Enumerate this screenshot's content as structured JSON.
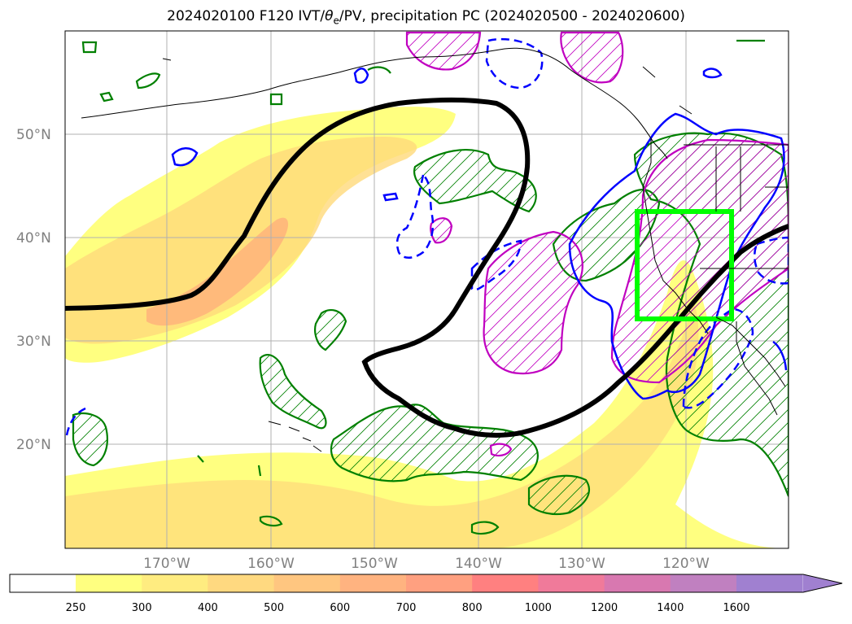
{
  "title": {
    "prefix": "2024020100 F120 IVT/",
    "theta": "θ",
    "theta_sub": "e",
    "suffix": "/PV, precipitation PC (2024020500 - 2024020600)"
  },
  "axes": {
    "lat_labels": [
      "50°N",
      "40°N",
      "30°N",
      "20°N"
    ],
    "lon_labels": [
      "170°W",
      "160°W",
      "150°W",
      "140°W",
      "130°W",
      "120°W"
    ]
  },
  "colorbar": {
    "ticks": [
      "250",
      "300",
      "400",
      "500",
      "600",
      "700",
      "800",
      "1000",
      "1200",
      "1400",
      "1600"
    ],
    "colors": [
      "#ffff80",
      "#ffec80",
      "#ffd980",
      "#ffc680",
      "#ffb380",
      "#ffa080",
      "#ff8080",
      "#f07a9a",
      "#d878b0",
      "#c080c0",
      "#a080d0"
    ],
    "extend": "max"
  },
  "colors": {
    "ivt_fill_light": "#ffff80",
    "ivt_fill_mid": "#ffd97a",
    "ivt_fill_high": "#ffb07a",
    "pv_contour": "#000000",
    "green_contour": "#008000",
    "magenta_contour": "#c000c0",
    "blue_contour": "#0000ff",
    "box": "#00ff00"
  }
}
